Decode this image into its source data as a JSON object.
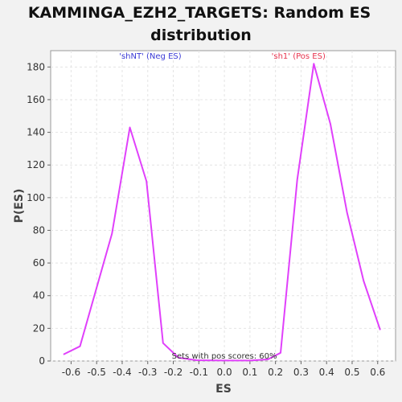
{
  "chart_data": {
    "type": "line",
    "title_lines": [
      "KAMMINGA_EZH2_TARGETS: Random ES",
      "distribution"
    ],
    "xlabel": "ES",
    "ylabel": "P(ES)",
    "xlim": [
      -0.68,
      0.67
    ],
    "ylim": [
      0,
      190
    ],
    "x_ticks": [
      -0.6,
      -0.5,
      -0.4,
      -0.3,
      -0.2,
      -0.1,
      0.0,
      0.1,
      0.2,
      0.3,
      0.4,
      0.5,
      0.6
    ],
    "x_tick_labels": [
      "-0.6",
      "-0.5",
      "-0.4",
      "-0.3",
      "-0.2",
      "-0.1",
      "0.0",
      "0.1",
      "0.2",
      "0.3",
      "0.4",
      "0.5",
      "0.6"
    ],
    "y_ticks": [
      0,
      20,
      40,
      60,
      80,
      100,
      120,
      140,
      160,
      180
    ],
    "y_tick_labels": [
      "0",
      "20",
      "40",
      "60",
      "80",
      "100",
      "120",
      "140",
      "160",
      "180"
    ],
    "grid": true,
    "series": [
      {
        "color": "#e040fb",
        "x": [
          -0.63,
          -0.565,
          -0.44,
          -0.37,
          -0.305,
          -0.24,
          -0.18,
          -0.11,
          0.0,
          0.1,
          0.17,
          0.22,
          0.285,
          0.35,
          0.415,
          0.48,
          0.545,
          0.61
        ],
        "y": [
          4,
          9,
          78,
          143,
          110,
          11,
          2,
          0.5,
          0.3,
          0.3,
          1,
          5,
          111,
          182,
          145,
          91,
          49,
          19
        ]
      }
    ],
    "annotations": [
      {
        "text": "'shNT' (Neg ES)",
        "x": -0.29,
        "y": 185,
        "color": "#3b3bd6"
      },
      {
        "text": "'sh1' (Pos ES)",
        "x": 0.29,
        "y": 185,
        "color": "#e8344e"
      },
      {
        "text": "Sets with pos scores: 60%",
        "x": 0.0,
        "y": 1.5,
        "color": "#333333"
      }
    ]
  }
}
